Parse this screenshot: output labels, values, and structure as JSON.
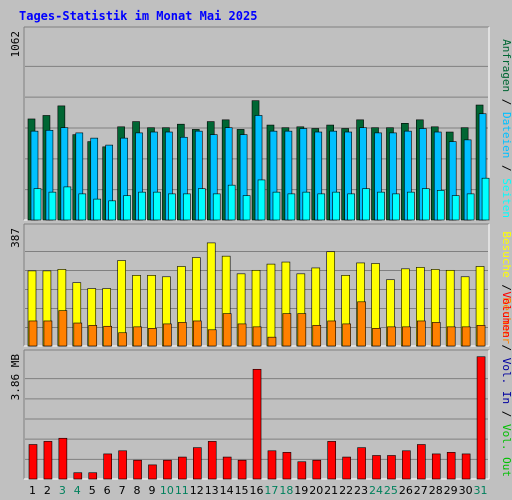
{
  "title": "Tages-Statistik im Monat Mai 2025",
  "colors": {
    "anfragen": "#006633",
    "dateien": "#00c0ff",
    "seiten": "#00ffff",
    "besuche": "#ffff00",
    "rechner": "#ff8000",
    "volumen": "#ff0000",
    "vol_in": "#0000a0",
    "vol_out": "#00c000",
    "title_color": "#0000ff",
    "weekend_color": "#00805c"
  },
  "chart_data": [
    {
      "type": "bar",
      "name": "hits-files-pages",
      "categories": [
        "1",
        "2",
        "3",
        "4",
        "5",
        "6",
        "7",
        "8",
        "9",
        "10",
        "11",
        "12",
        "13",
        "14",
        "15",
        "16",
        "17",
        "18",
        "19",
        "20",
        "21",
        "22",
        "23",
        "24",
        "25",
        "26",
        "27",
        "28",
        "29",
        "30",
        "31"
      ],
      "ymax_label": "1062",
      "ylim": [
        0,
        1062
      ],
      "legend": [
        "Anfragen",
        "/",
        "Dateien",
        "/",
        "Seiten"
      ],
      "series": [
        {
          "name": "Anfragen",
          "values": [
            580,
            600,
            655,
            490,
            450,
            420,
            535,
            565,
            530,
            530,
            550,
            520,
            565,
            575,
            520,
            685,
            545,
            530,
            535,
            525,
            545,
            525,
            575,
            530,
            530,
            555,
            575,
            535,
            505,
            530,
            660
          ]
        },
        {
          "name": "Dateien",
          "values": [
            510,
            515,
            530,
            500,
            470,
            430,
            470,
            500,
            505,
            505,
            475,
            510,
            490,
            530,
            490,
            600,
            510,
            510,
            525,
            505,
            510,
            505,
            530,
            500,
            500,
            510,
            525,
            505,
            450,
            460,
            610
          ]
        },
        {
          "name": "Seiten",
          "values": [
            180,
            160,
            190,
            150,
            120,
            110,
            140,
            160,
            160,
            150,
            150,
            180,
            150,
            200,
            140,
            230,
            160,
            150,
            160,
            150,
            160,
            150,
            180,
            160,
            150,
            160,
            180,
            170,
            140,
            150,
            240
          ]
        }
      ]
    },
    {
      "type": "bar",
      "name": "visits-sites",
      "categories": [
        "1",
        "2",
        "3",
        "4",
        "5",
        "6",
        "7",
        "8",
        "9",
        "10",
        "11",
        "12",
        "13",
        "14",
        "15",
        "16",
        "17",
        "18",
        "19",
        "20",
        "21",
        "22",
        "23",
        "24",
        "25",
        "26",
        "27",
        "28",
        "29",
        "30",
        "31"
      ],
      "ymax_label": "387",
      "ylim": [
        0,
        387
      ],
      "legend": [
        "Besuche",
        "/",
        "Rechner"
      ],
      "series": [
        {
          "name": "Besuche",
          "values": [
            255,
            255,
            260,
            215,
            195,
            195,
            290,
            240,
            240,
            235,
            270,
            300,
            350,
            305,
            245,
            257,
            278,
            285,
            245,
            265,
            320,
            240,
            282,
            280,
            225,
            262,
            267,
            260,
            257,
            235,
            270
          ]
        },
        {
          "name": "Rechner",
          "values": [
            85,
            85,
            120,
            78,
            70,
            67,
            45,
            65,
            60,
            75,
            80,
            85,
            55,
            110,
            75,
            65,
            30,
            110,
            110,
            70,
            85,
            75,
            150,
            60,
            65,
            65,
            85,
            80,
            65,
            65,
            70
          ]
        }
      ]
    },
    {
      "type": "bar",
      "name": "volume",
      "categories": [
        "1",
        "2",
        "3",
        "4",
        "5",
        "6",
        "7",
        "8",
        "9",
        "10",
        "11",
        "12",
        "13",
        "14",
        "15",
        "16",
        "17",
        "18",
        "19",
        "20",
        "21",
        "22",
        "23",
        "24",
        "25",
        "26",
        "27",
        "28",
        "29",
        "30",
        "31"
      ],
      "ymax_label": "3.86 MB",
      "ylim": [
        0,
        3.86
      ],
      "legend": [
        "Volumen",
        "/",
        "Vol. In",
        "/",
        "Vol. Out"
      ],
      "series": [
        {
          "name": "Volumen",
          "values": [
            1.1,
            1.2,
            1.3,
            0.2,
            0.2,
            0.8,
            0.9,
            0.6,
            0.45,
            0.6,
            0.7,
            1.0,
            1.2,
            0.7,
            0.6,
            3.5,
            0.9,
            0.85,
            0.55,
            0.6,
            1.2,
            0.7,
            1.0,
            0.75,
            0.75,
            0.9,
            1.1,
            0.8,
            0.85,
            0.8,
            3.9
          ]
        }
      ]
    }
  ]
}
